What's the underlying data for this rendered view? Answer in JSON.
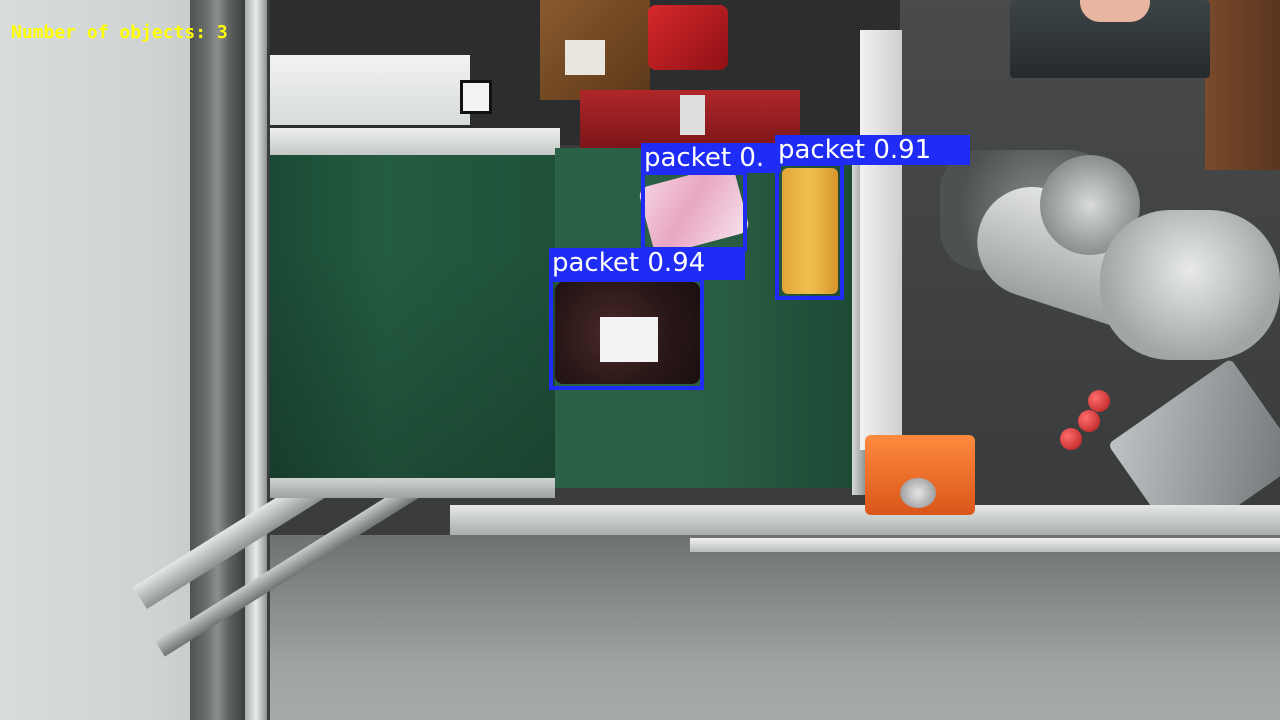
{
  "overlay": {
    "counter_text": "Number of objects: 3",
    "counter_color": "#ffff00"
  },
  "detections": [
    {
      "label": "packet 0.94",
      "class": "packet",
      "confidence": 0.94
    },
    {
      "label": "packet 0.91",
      "class": "packet",
      "confidence": 0.91
    },
    {
      "label": "packet 0.",
      "class": "packet",
      "confidence": null
    }
  ],
  "colors": {
    "box": "#1f2cf5",
    "label_text": "#ffffff"
  }
}
